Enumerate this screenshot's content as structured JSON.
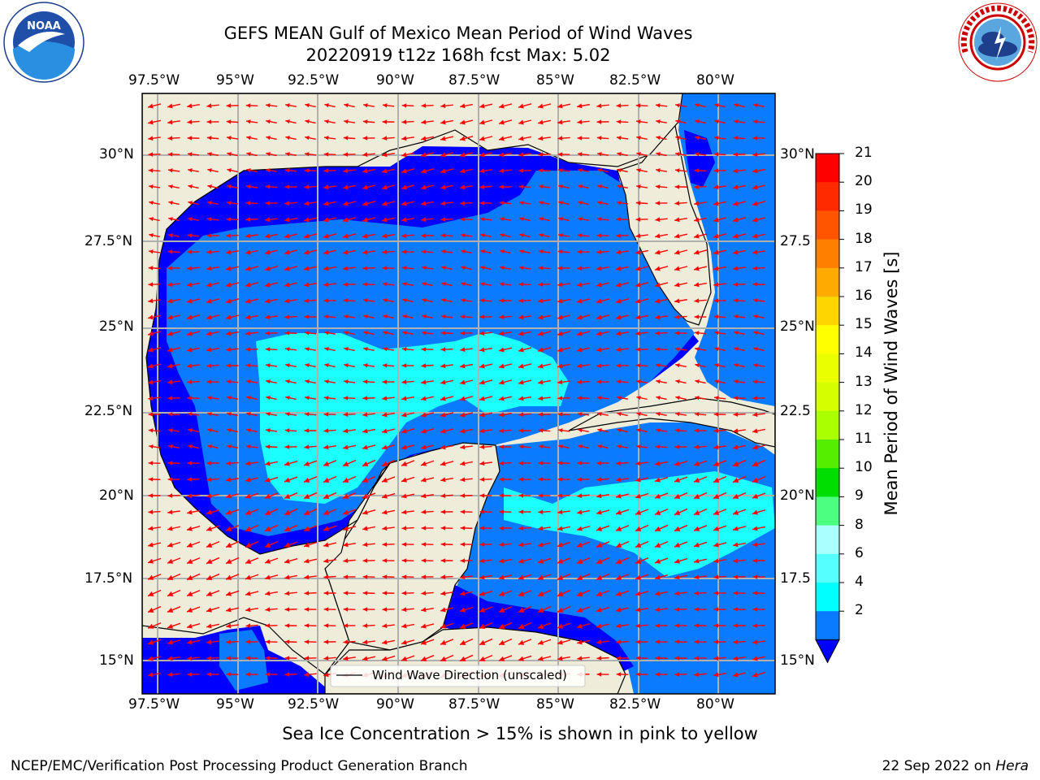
{
  "title": {
    "line1": "GEFS MEAN Gulf of Mexico Mean Period of Wind Waves",
    "line2": "20220919 t12z 168h fcst   Max: 5.02"
  },
  "map": {
    "lon_ticks": [
      "97.5°W",
      "95°W",
      "92.5°W",
      "90°W",
      "87.5°W",
      "85°W",
      "82.5°W",
      "80°W"
    ],
    "lat_ticks_left": [
      "30°N",
      "27.5°N",
      "25°N",
      "22.5°N",
      "20°N",
      "17.5°N",
      "15°N"
    ],
    "lat_ticks_right": [
      "30°N",
      "27.5",
      "25°N",
      "22.5",
      "20°N",
      "17.5",
      "15°N"
    ],
    "legend_label": "Wind Wave Direction (unscaled)",
    "colors": {
      "land": "#efedda",
      "coast": "#000000",
      "grid": "#b0b0b0",
      "arrow": "#ff0000",
      "band_2_4": "#0000ff",
      "band_4_6": "#0a7bff",
      "band_6_8": "#1cffff"
    }
  },
  "colorbar": {
    "label": "Mean Period of Wind Waves [s]",
    "ticks": [
      "21",
      "20",
      "19",
      "18",
      "17",
      "16",
      "15",
      "14",
      "13",
      "12",
      "11",
      "10",
      "9",
      "8",
      "6",
      "4",
      "2"
    ],
    "colors": [
      "#ff0000",
      "#ff2a00",
      "#ff5500",
      "#ff8000",
      "#ffaa00",
      "#ffd500",
      "#ffff00",
      "#eaff00",
      "#d5ff00",
      "#aaff00",
      "#55ee00",
      "#00dd00",
      "#4dff80",
      "#aaffff",
      "#55ffff",
      "#00ffff",
      "#0a7bff"
    ],
    "extend_color": "#0000ff"
  },
  "subtitle": "Sea Ice Concentration > 15% is shown in pink to yellow",
  "footer": {
    "left": "NCEP/EMC/Verification Post Processing Product Generation Branch",
    "right_date": "22 Sep 2022 on ",
    "right_host": "Hera"
  },
  "logos": {
    "noaa_text": "NOAA",
    "nws_text": "NATIONAL WEATHER SERVICE"
  }
}
